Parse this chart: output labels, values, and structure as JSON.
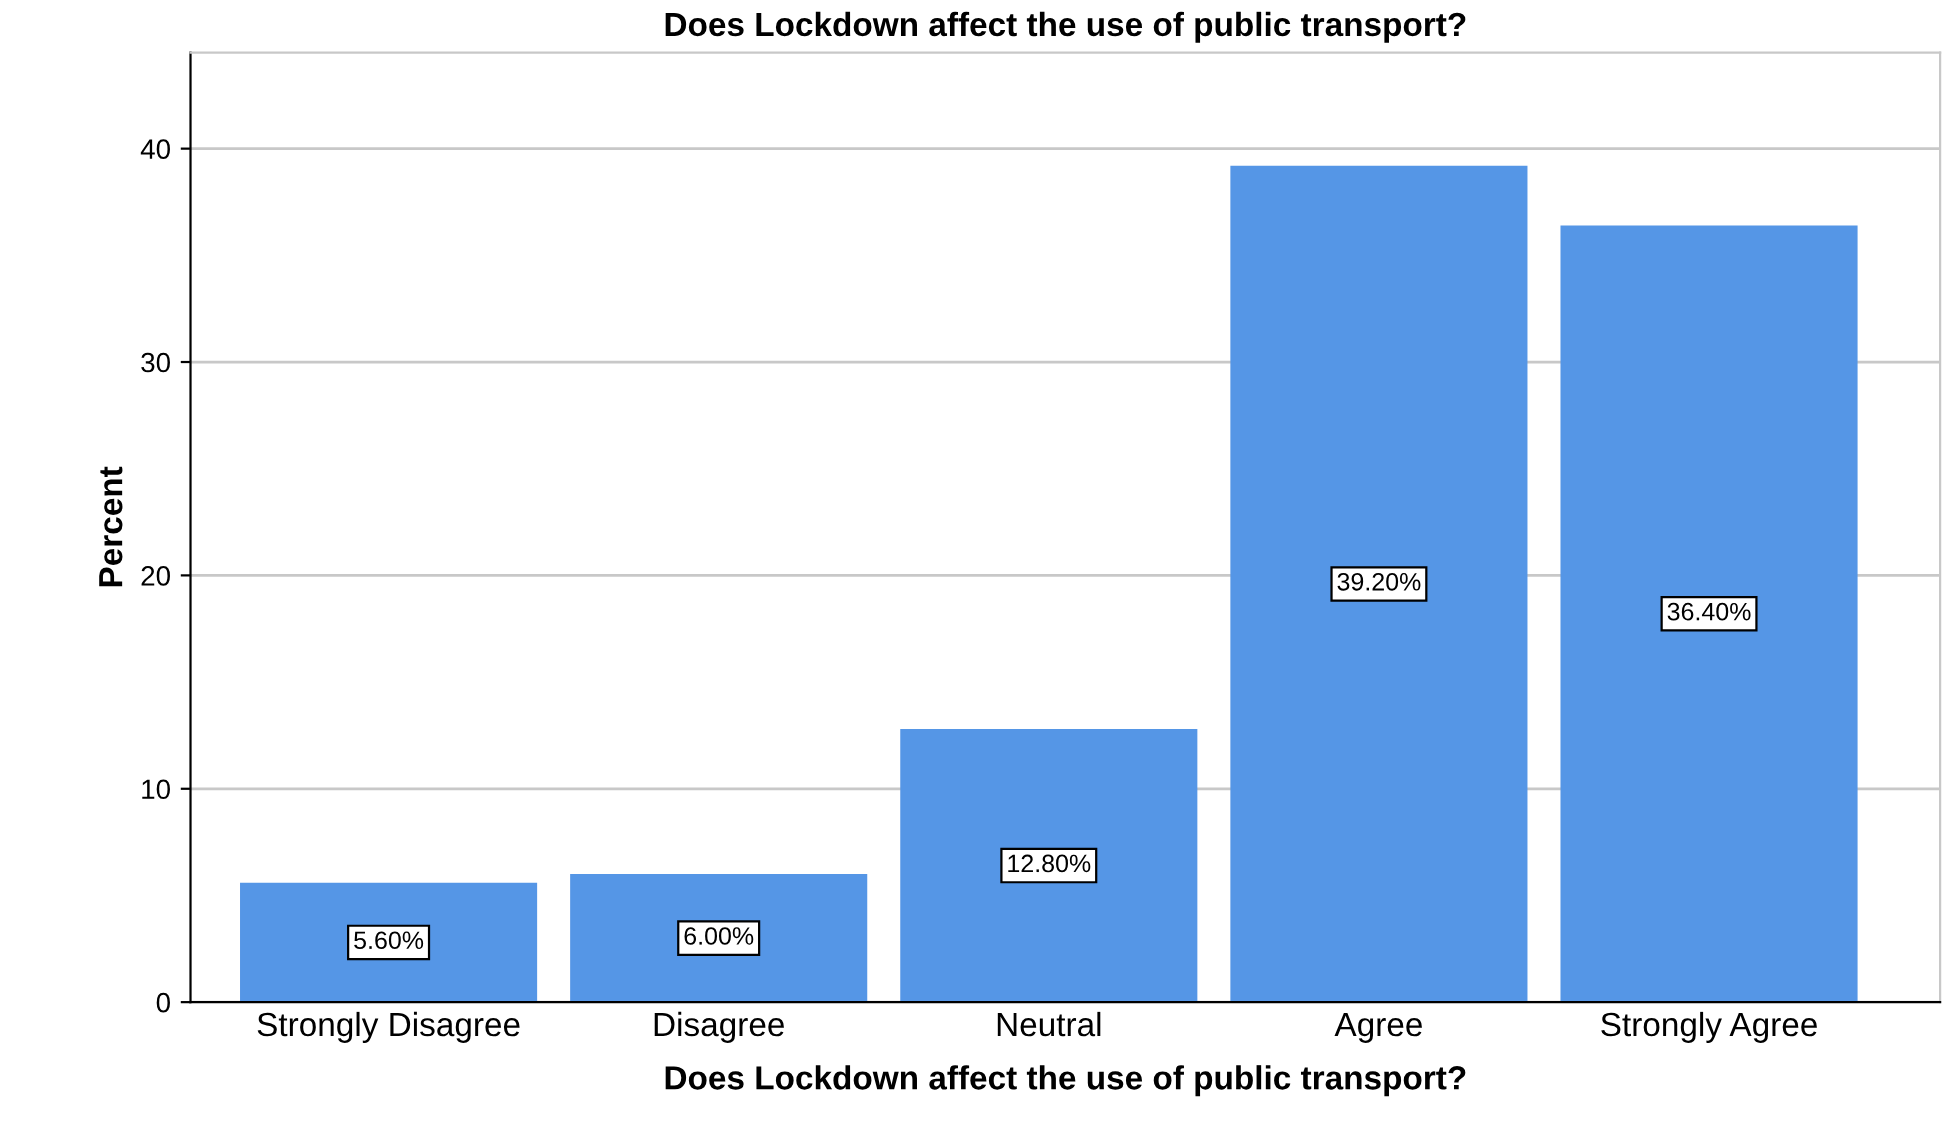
{
  "chart_data": {
    "type": "bar",
    "title": "Does Lockdown affect the use of public transport?",
    "xlabel": "Does Lockdown affect the use of public transport?",
    "ylabel": "Percent",
    "categories": [
      "Strongly Disagree",
      "Disagree",
      "Neutral",
      "Agree",
      "Strongly Agree"
    ],
    "values": [
      5.6,
      6.0,
      12.8,
      39.2,
      36.4
    ],
    "color": "#5596e6",
    "value_labels": [
      "5.60%",
      "6.00%",
      "12.80%",
      "39.20%",
      "36.40%"
    ],
    "ylim": [
      0,
      44.5
    ],
    "yticks": [
      0,
      10,
      20,
      30,
      40
    ],
    "grid": "y",
    "legend": false
  }
}
